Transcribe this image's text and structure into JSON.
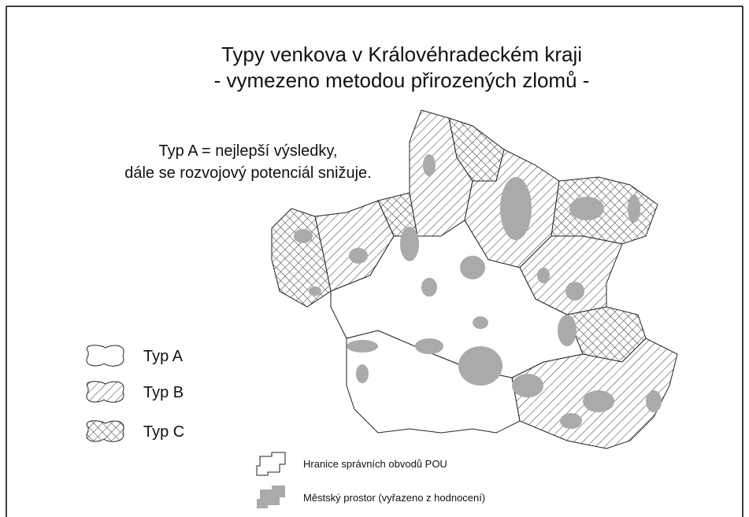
{
  "title": [
    "Typy venkova v Královéhradeckém kraji",
    "- vymezeno metodou přirozených zlomů -"
  ],
  "note": [
    "Typ A = nejlepší výsledky,",
    "dále se rozvojový potenciál snižuje."
  ],
  "legend_types": [
    "Typ A",
    "Typ B",
    "Typ C"
  ],
  "legend_other": [
    "Hranice správních obvodů POU",
    "Městský prostor (vyřazeno z hodnocení)"
  ]
}
